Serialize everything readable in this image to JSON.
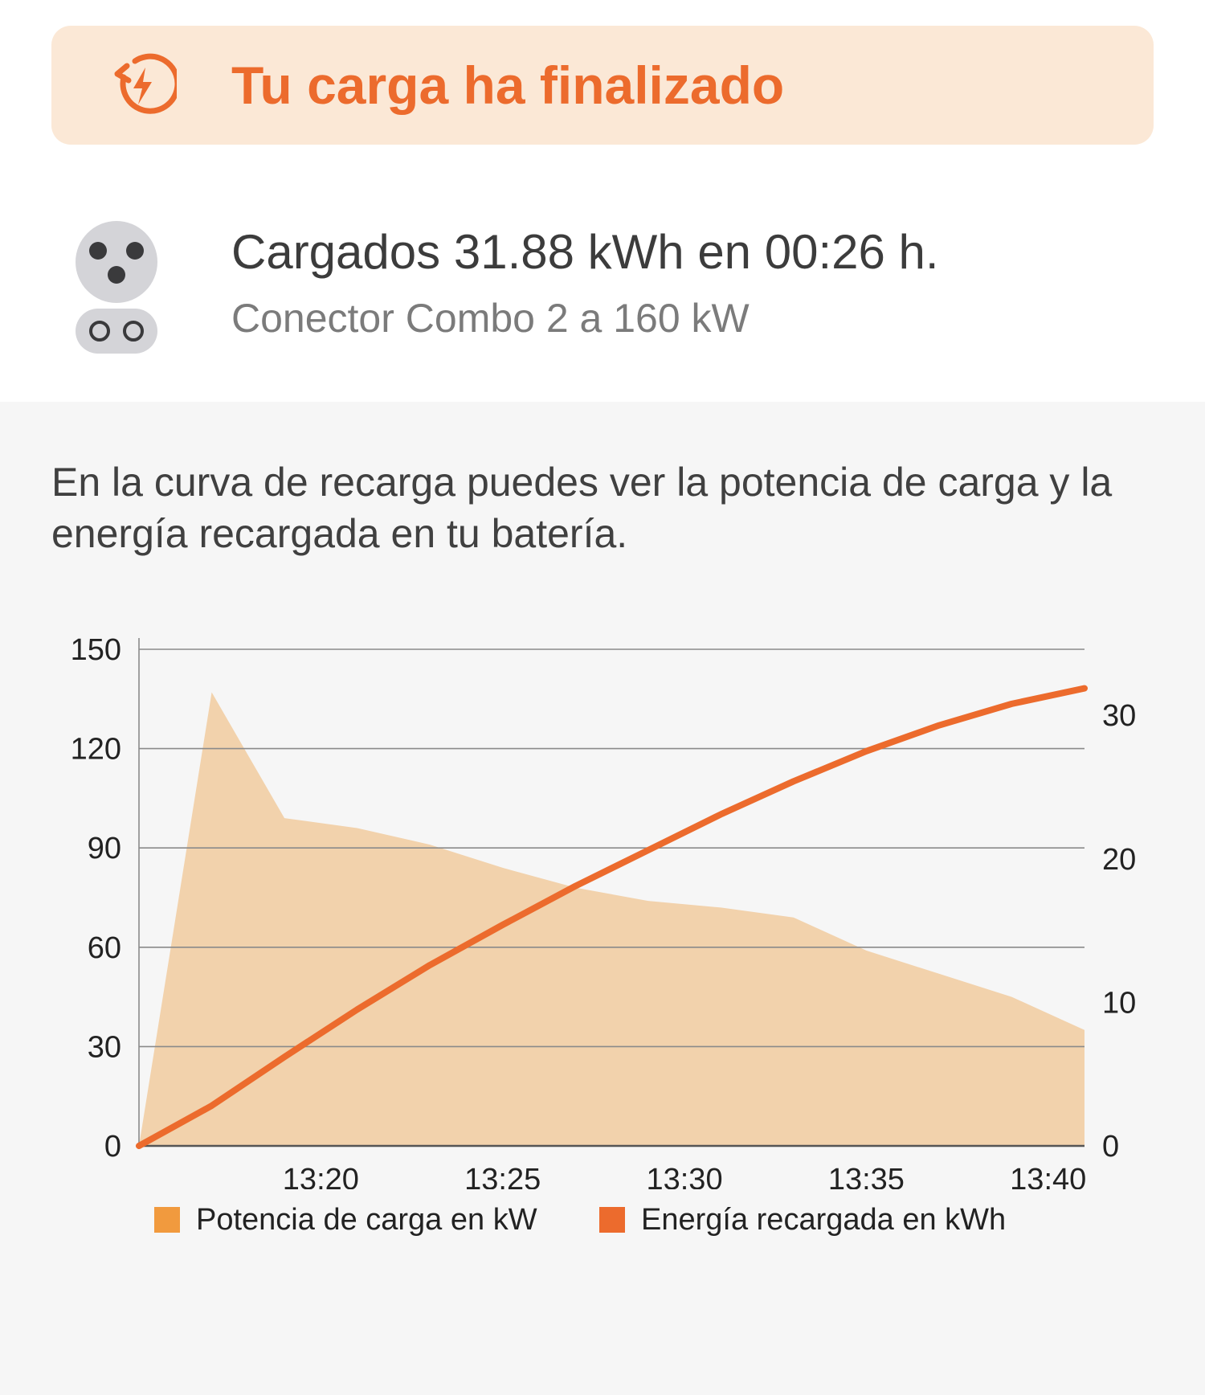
{
  "banner": {
    "title": "Tu carga ha finalizado",
    "icon": "charging-complete-icon",
    "accent_color": "#ec6b2d",
    "background_color": "#fbe8d6"
  },
  "summary": {
    "title": "Cargados 31.88 kWh en 00:26 h.",
    "subtitle": "Conector Combo 2 a 160 kW",
    "icon": "ccs-combo2-connector-icon"
  },
  "description": "En la curva de recarga puedes ver la potencia de carga y la energía recargada en tu batería.",
  "chart_data": {
    "type": "area",
    "title": "",
    "xlabel": "",
    "ylabel": "",
    "x_ticks": [
      "13:20",
      "13:25",
      "13:30",
      "13:35",
      "13:40"
    ],
    "x_range": [
      "13:15",
      "13:41"
    ],
    "y_left_range": [
      0,
      150
    ],
    "y_left_ticks": [
      "0",
      "30",
      "60",
      "90",
      "120",
      "150"
    ],
    "y_right_range": [
      0,
      34.6
    ],
    "y_right_ticks": [
      "0",
      "10",
      "20",
      "30"
    ],
    "grid": true,
    "legend_position": "bottom",
    "series": [
      {
        "name": "Potencia de carga en kW",
        "type": "area",
        "axis": "left",
        "color": "#f2d2ac",
        "legend_color": "#f19a3e",
        "x": [
          "13:15",
          "13:17",
          "13:19",
          "13:21",
          "13:23",
          "13:25",
          "13:27",
          "13:29",
          "13:31",
          "13:33",
          "13:35",
          "13:37",
          "13:39",
          "13:41"
        ],
        "y": [
          0,
          137,
          99,
          96,
          91,
          84,
          78,
          74,
          72,
          69,
          59,
          52,
          45,
          35
        ]
      },
      {
        "name": "Energía recargada en kWh",
        "type": "line",
        "axis": "right",
        "color": "#ec6b2d",
        "legend_color": "#ec6b2d",
        "x": [
          "13:15",
          "13:17",
          "13:19",
          "13:21",
          "13:23",
          "13:25",
          "13:27",
          "13:29",
          "13:31",
          "13:33",
          "13:35",
          "13:37",
          "13:39",
          "13:41"
        ],
        "y": [
          0,
          2.8,
          6.2,
          9.5,
          12.6,
          15.4,
          18.1,
          20.6,
          23.1,
          25.4,
          27.5,
          29.3,
          30.8,
          31.88
        ]
      }
    ]
  }
}
